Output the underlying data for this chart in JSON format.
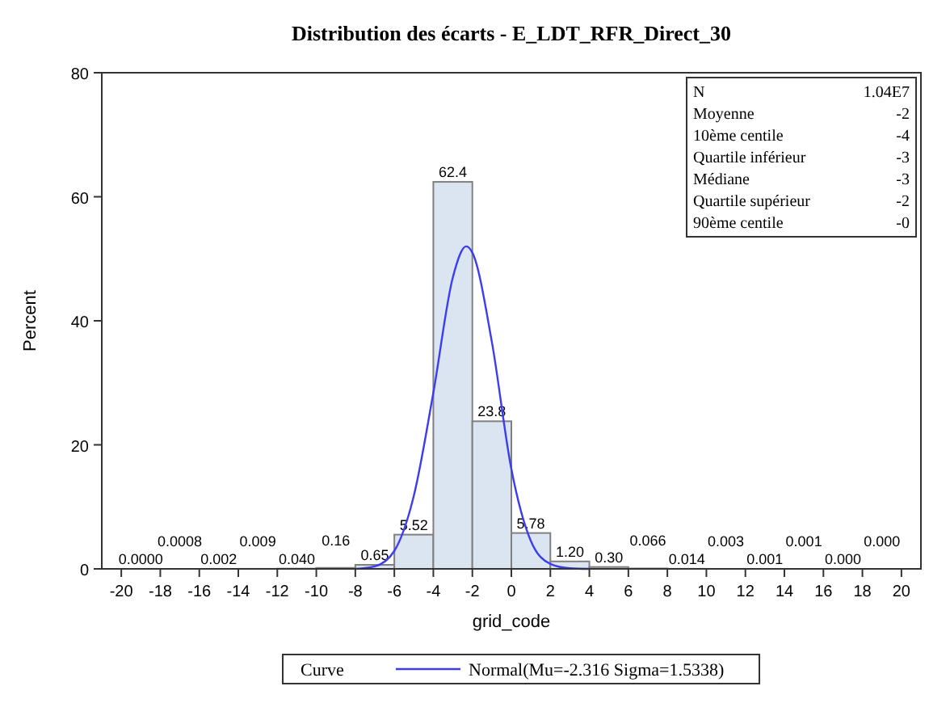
{
  "chart_data": {
    "type": "histogram",
    "title": "Distribution des écarts - E_LDT_RFR_Direct_30",
    "xlabel": "grid_code",
    "ylabel": "Percent",
    "bins": [
      -20,
      -18,
      -16,
      -14,
      -12,
      -10,
      -8,
      -6,
      -4,
      -2,
      0,
      2,
      4,
      6,
      8,
      10,
      12,
      14,
      16,
      18,
      20
    ],
    "values": [
      0.0,
      0.0008,
      0.002,
      0.009,
      0.04,
      0.16,
      0.65,
      5.52,
      62.4,
      23.8,
      5.78,
      1.2,
      0.3,
      0.066,
      0.014,
      0.003,
      0.001,
      0.001,
      0.0,
      0.0
    ],
    "value_labels": [
      "0.0000",
      "0.0008",
      "0.002",
      "0.009",
      "0.040",
      "0.16",
      "0.65",
      "5.52",
      "62.4",
      "23.8",
      "5.78",
      "1.20",
      "0.30",
      "0.066",
      "0.014",
      "0.003",
      "0.001",
      "0.001",
      "0.000",
      "0.000"
    ],
    "color": "#dbe5f1",
    "series": [
      {
        "type": "line",
        "name": "Normal(Mu=-2.316 Sigma=1.5338)",
        "color": "#3c3cf0",
        "x": [
          -8,
          -7,
          -6,
          -5,
          -4,
          -3,
          -2.316,
          -2,
          -1,
          0,
          1,
          2,
          3,
          4
        ],
        "values": [
          0,
          0.4,
          2.9,
          11.8,
          28.4,
          47.0,
          52.0,
          51.0,
          36.6,
          16.1,
          4.5,
          0.8,
          0.1,
          0
        ]
      }
    ],
    "xlim": [
      -21,
      21
    ],
    "xticks": [
      -20,
      -18,
      -16,
      -14,
      -12,
      -10,
      -8,
      -6,
      -4,
      -2,
      0,
      2,
      4,
      6,
      8,
      10,
      12,
      14,
      16,
      18,
      20
    ],
    "ylim": [
      0,
      80
    ],
    "yticks": [
      0,
      20,
      40,
      60,
      80
    ],
    "grid": false,
    "legend": "bottom",
    "legend_title": "Curve",
    "annotations": [
      "N 1.04E7",
      "Moyenne -2",
      "10ème centile -4",
      "Quartile inférieur -3",
      "Médiane -3",
      "Quartile supérieur -2",
      "90ème centile -0"
    ]
  }
}
